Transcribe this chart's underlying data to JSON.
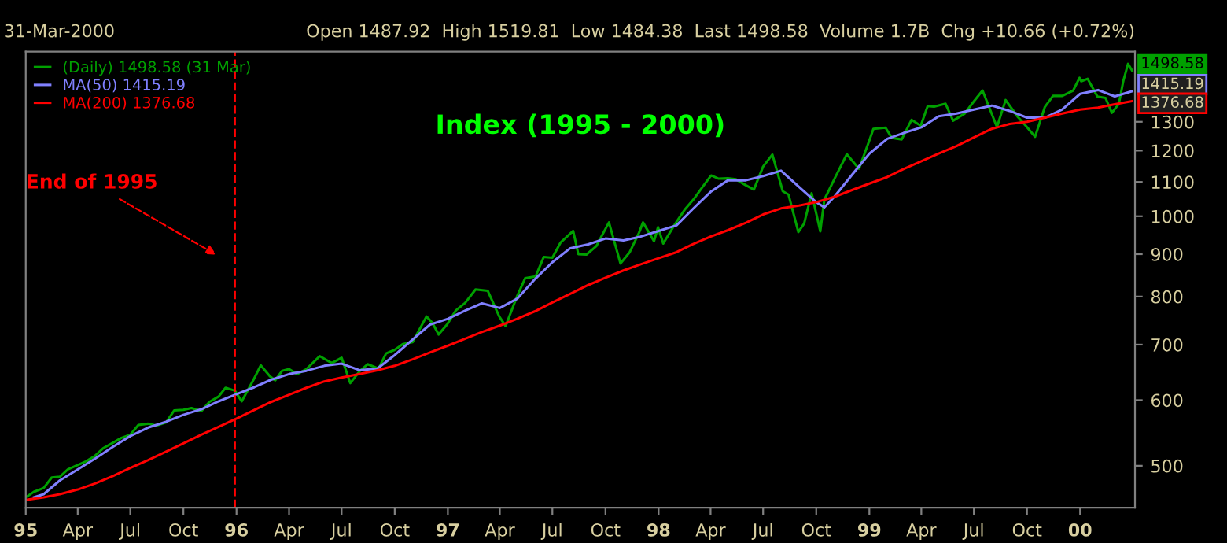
{
  "chart_data": {
    "type": "line",
    "title": "Index (1995 - 2000)",
    "annotations": [
      "31-Mar-2000",
      "Open 1487.92  High 1519.81  Low 1484.38  Last 1498.58  Volume 1.7B  Chg +10.66 (+0.72%)",
      "End of 1995",
      {
        "text": "1498.58",
        "x": "2000-03-31",
        "y": 1498.58
      },
      {
        "text": "1415.19",
        "x": "2000-03-31",
        "y": 1415.19
      },
      {
        "text": "1376.68",
        "x": "2000-03-31",
        "y": 1376.68
      }
    ],
    "series": [
      {
        "name": "(Daily) 1498.58 (31 Mar)",
        "color": "#00a000",
        "x": [
          "1995-01-03",
          "1995-01-15",
          "1995-02-01",
          "1995-02-15",
          "1995-03-01",
          "1995-03-15",
          "1995-04-01",
          "1995-04-15",
          "1995-05-01",
          "1995-05-15",
          "1995-06-01",
          "1995-06-15",
          "1995-07-01",
          "1995-07-15",
          "1995-08-01",
          "1995-08-15",
          "1995-09-01",
          "1995-09-15",
          "1995-10-01",
          "1995-10-15",
          "1995-11-01",
          "1995-11-15",
          "1995-12-01",
          "1995-12-13",
          "1995-12-29",
          "1996-01-10",
          "1996-01-31",
          "1996-02-12",
          "1996-02-28",
          "1996-03-08",
          "1996-03-20",
          "1996-04-01",
          "1996-04-15",
          "1996-05-01",
          "1996-05-24",
          "1996-06-14",
          "1996-07-01",
          "1996-07-16",
          "1996-08-01",
          "1996-08-15",
          "1996-09-03",
          "1996-09-16",
          "1996-10-01",
          "1996-10-15",
          "1996-11-01",
          "1996-11-25",
          "1996-12-05",
          "1996-12-16",
          "1996-12-31",
          "1997-01-15",
          "1997-01-31",
          "1997-02-18",
          "1997-03-11",
          "1997-03-31",
          "1997-04-11",
          "1997-05-01",
          "1997-05-15",
          "1997-06-02",
          "1997-06-16",
          "1997-07-01",
          "1997-07-15",
          "1997-08-06",
          "1997-08-15",
          "1997-08-29",
          "1997-09-15",
          "1997-10-07",
          "1997-10-27",
          "1997-11-12",
          "1997-11-28",
          "1997-12-05",
          "1997-12-24",
          "1997-12-31",
          "1998-01-09",
          "1998-01-30",
          "1998-02-16",
          "1998-03-02",
          "1998-03-16",
          "1998-04-02",
          "1998-04-15",
          "1998-05-01",
          "1998-05-15",
          "1998-06-01",
          "1998-06-15",
          "1998-07-01",
          "1998-07-17",
          "1998-08-04",
          "1998-08-14",
          "1998-08-31",
          "1998-09-10",
          "1998-09-23",
          "1998-10-08",
          "1998-10-15",
          "1998-11-02",
          "1998-11-23",
          "1998-12-14",
          "1998-12-31",
          "1999-01-08",
          "1999-01-29",
          "1999-02-09",
          "1999-02-26",
          "1999-03-15",
          "1999-03-31",
          "1999-04-12",
          "1999-04-23",
          "1999-05-13",
          "1999-05-26",
          "1999-06-15",
          "1999-06-30",
          "1999-07-16",
          "1999-08-10",
          "1999-08-25",
          "1999-09-15",
          "1999-09-30",
          "1999-10-15",
          "1999-11-01",
          "1999-11-15",
          "1999-12-01",
          "1999-12-20",
          "1999-12-31",
          "2000-01-03",
          "2000-01-14",
          "2000-01-31",
          "2000-02-14",
          "2000-02-25",
          "2000-03-08",
          "2000-03-16",
          "2000-03-24",
          "2000-03-31"
        ],
        "values": [
          459,
          465,
          470,
          484,
          485,
          495,
          501,
          506,
          514,
          525,
          533,
          540,
          545,
          560,
          562,
          559,
          564,
          583,
          584,
          587,
          582,
          597,
          606,
          621,
          616,
          598,
          636,
          661,
          641,
          634,
          651,
          654,
          645,
          654,
          678,
          665,
          675,
          629,
          650,
          663,
          655,
          683,
          690,
          701,
          705,
          757,
          744,
          720,
          741,
          770,
          786,
          816,
          813,
          757,
          737,
          801,
          842,
          846,
          893,
          891,
          929,
          960,
          900,
          899,
          920,
          983,
          877,
          905,
          955,
          983,
          933,
          970,
          927,
          980,
          1020,
          1047,
          1080,
          1120,
          1110,
          1111,
          1108,
          1090,
          1077,
          1148,
          1187,
          1072,
          1062,
          957,
          980,
          1066,
          959,
          1047,
          1111,
          1188,
          1141,
          1229,
          1275,
          1279,
          1243,
          1238,
          1307,
          1286,
          1358,
          1356,
          1367,
          1304,
          1330,
          1373,
          1418,
          1281,
          1381,
          1318,
          1283,
          1247,
          1355,
          1397,
          1397,
          1418,
          1469,
          1455,
          1465,
          1394,
          1389,
          1333,
          1366,
          1458,
          1527,
          1498.58
        ]
      },
      {
        "name": "MA(50) 1415.19",
        "color": "#8080ff",
        "x": [
          "1995-01-15",
          "1995-02-01",
          "1995-03-01",
          "1995-04-01",
          "1995-05-01",
          "1995-06-01",
          "1995-07-01",
          "1995-08-01",
          "1995-09-01",
          "1995-10-01",
          "1995-11-01",
          "1995-12-01",
          "1996-01-01",
          "1996-02-01",
          "1996-03-01",
          "1996-04-01",
          "1996-05-01",
          "1996-06-01",
          "1996-07-01",
          "1996-08-01",
          "1996-09-01",
          "1996-10-01",
          "1996-11-01",
          "1996-12-01",
          "1997-01-01",
          "1997-02-01",
          "1997-03-01",
          "1997-04-01",
          "1997-05-01",
          "1997-06-01",
          "1997-07-01",
          "1997-08-01",
          "1997-09-01",
          "1997-10-01",
          "1997-11-01",
          "1997-12-01",
          "1998-01-01",
          "1998-02-01",
          "1998-03-01",
          "1998-04-01",
          "1998-05-01",
          "1998-06-01",
          "1998-07-01",
          "1998-08-01",
          "1998-09-01",
          "1998-10-01",
          "1998-10-15",
          "1998-11-01",
          "1998-12-01",
          "1999-01-01",
          "1999-02-01",
          "1999-03-01",
          "1999-04-01",
          "1999-05-01",
          "1999-06-01",
          "1999-07-01",
          "1999-08-01",
          "1999-09-01",
          "1999-10-01",
          "1999-11-01",
          "1999-12-01",
          "2000-01-01",
          "2000-02-01",
          "2000-03-01",
          "2000-03-31"
        ],
        "values": [
          458,
          462,
          480,
          495,
          510,
          527,
          543,
          556,
          565,
          576,
          585,
          598,
          610,
          622,
          635,
          645,
          651,
          660,
          664,
          652,
          655,
          680,
          710,
          740,
          752,
          770,
          785,
          775,
          795,
          840,
          880,
          915,
          925,
          940,
          935,
          945,
          960,
          975,
          1020,
          1070,
          1105,
          1105,
          1118,
          1135,
          1085,
          1040,
          1025,
          1055,
          1120,
          1190,
          1240,
          1260,
          1280,
          1320,
          1330,
          1345,
          1360,
          1340,
          1315,
          1315,
          1345,
          1405,
          1420,
          1395,
          1415.19
        ]
      },
      {
        "name": "MA(200) 1376.68",
        "color": "#ff0000",
        "x": [
          "1995-01-03",
          "1995-02-01",
          "1995-03-01",
          "1995-04-01",
          "1995-05-01",
          "1995-06-01",
          "1995-07-01",
          "1995-08-01",
          "1995-09-01",
          "1995-10-01",
          "1995-11-01",
          "1995-12-01",
          "1996-01-01",
          "1996-02-01",
          "1996-03-01",
          "1996-04-01",
          "1996-05-01",
          "1996-06-01",
          "1996-07-01",
          "1996-08-01",
          "1996-09-01",
          "1996-10-01",
          "1996-11-01",
          "1996-12-01",
          "1997-01-01",
          "1997-02-01",
          "1997-03-01",
          "1997-04-01",
          "1997-05-01",
          "1997-06-01",
          "1997-07-01",
          "1997-08-01",
          "1997-09-01",
          "1997-10-01",
          "1997-11-01",
          "1997-12-01",
          "1998-01-01",
          "1998-02-01",
          "1998-03-01",
          "1998-04-01",
          "1998-05-01",
          "1998-06-01",
          "1998-07-01",
          "1998-08-01",
          "1998-09-01",
          "1998-10-01",
          "1998-11-01",
          "1998-12-01",
          "1999-01-01",
          "1999-02-01",
          "1999-03-01",
          "1999-04-01",
          "1999-05-01",
          "1999-06-01",
          "1999-07-01",
          "1999-08-01",
          "1999-09-01",
          "1999-10-01",
          "1999-11-01",
          "1999-12-01",
          "2000-01-01",
          "2000-02-01",
          "2000-03-01",
          "2000-03-31"
        ],
        "values": [
          455,
          458,
          462,
          468,
          476,
          486,
          497,
          508,
          520,
          532,
          545,
          557,
          570,
          584,
          597,
          609,
          621,
          632,
          639,
          645,
          652,
          660,
          672,
          685,
          698,
          712,
          725,
          738,
          752,
          768,
          787,
          806,
          826,
          843,
          860,
          875,
          890,
          905,
          925,
          945,
          962,
          982,
          1005,
          1022,
          1030,
          1040,
          1055,
          1075,
          1095,
          1115,
          1140,
          1165,
          1190,
          1215,
          1245,
          1275,
          1292,
          1300,
          1315,
          1330,
          1345,
          1352,
          1365,
          1376.68
        ]
      }
    ],
    "ref_lines": [
      {
        "axis": "x",
        "value": "1995-12-29",
        "color": "#ff0000",
        "line_style": "dashed"
      }
    ],
    "log": "y",
    "xlim": [
      "1995-01-01",
      "2000-04-05"
    ],
    "xticks": [
      {
        "value": "1995-01-01",
        "label": "95"
      },
      {
        "value": "1995-04-01",
        "label": "Apr"
      },
      {
        "value": "1995-07-01",
        "label": "Jul"
      },
      {
        "value": "1995-10-01",
        "label": "Oct"
      },
      {
        "value": "1996-01-01",
        "label": "96"
      },
      {
        "value": "1996-04-01",
        "label": "Apr"
      },
      {
        "value": "1996-07-01",
        "label": "Jul"
      },
      {
        "value": "1996-10-01",
        "label": "Oct"
      },
      {
        "value": "1997-01-01",
        "label": "97"
      },
      {
        "value": "1997-04-01",
        "label": "Apr"
      },
      {
        "value": "1997-07-01",
        "label": "Jul"
      },
      {
        "value": "1997-10-01",
        "label": "Oct"
      },
      {
        "value": "1998-01-01",
        "label": "98"
      },
      {
        "value": "1998-04-01",
        "label": "Apr"
      },
      {
        "value": "1998-07-01",
        "label": "Jul"
      },
      {
        "value": "1998-10-01",
        "label": "Oct"
      },
      {
        "value": "1999-01-01",
        "label": "99"
      },
      {
        "value": "1999-04-01",
        "label": "Apr"
      },
      {
        "value": "1999-07-01",
        "label": "Jul"
      },
      {
        "value": "1999-10-01",
        "label": "Oct"
      },
      {
        "value": "2000-01-01",
        "label": "00"
      }
    ],
    "ylim": [
      445,
      1580
    ],
    "yticks": [
      500,
      600,
      700,
      800,
      900,
      1000,
      1100,
      1200,
      1300
    ],
    "grid": false,
    "legend": "top left",
    "marker": "none",
    "line_style": "solid"
  }
}
